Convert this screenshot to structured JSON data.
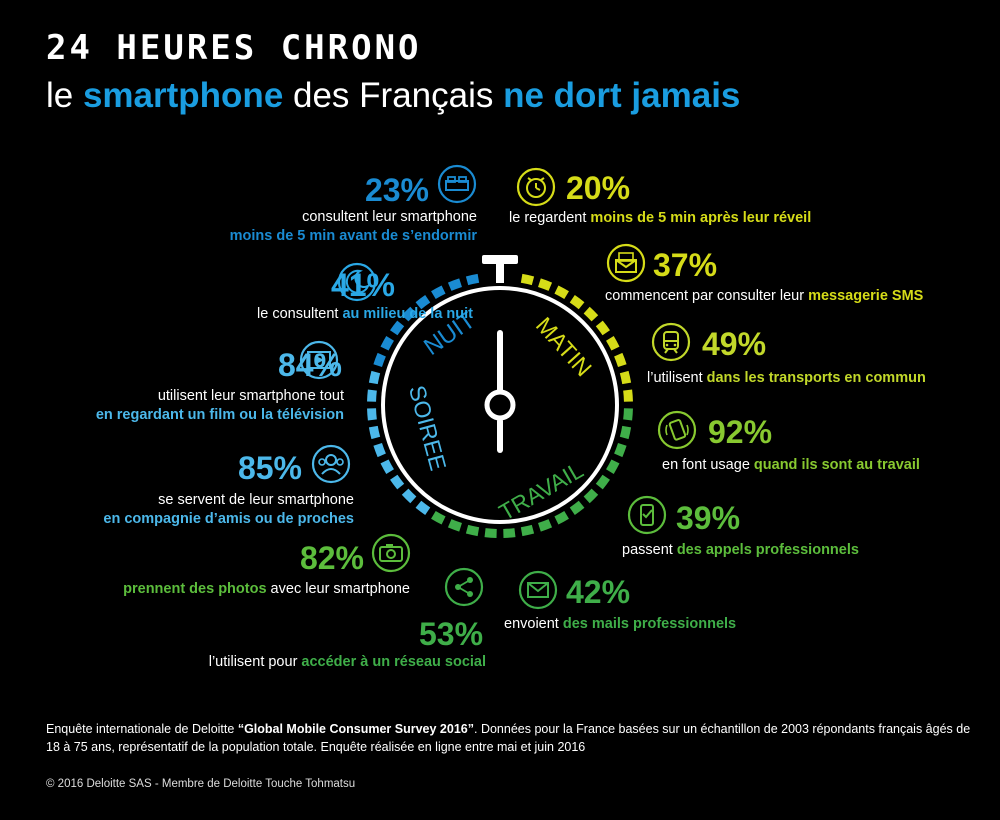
{
  "header": {
    "title": "24 HEURES CHRONO",
    "subtitle_pre": "le ",
    "subtitle_hl1": "smartphone",
    "subtitle_mid": " des Français ",
    "subtitle_hl2": "ne dort jamais"
  },
  "clock": {
    "labels": {
      "nuit": "NUIT",
      "matin": "MATIN",
      "travail": "TRAVAIL",
      "soiree": "SOIREE"
    },
    "colors": {
      "nuit": "#1a8bd2",
      "matin": "#d6dc18",
      "travail": "#3fae49",
      "soiree": "#4cb8ea"
    }
  },
  "stats": {
    "s23": {
      "pct": "23%",
      "l1": "consultent leur smartphone",
      "l2": "moins de 5 min avant de s’endormir",
      "icon": "bed-icon"
    },
    "s41": {
      "pct": "41%",
      "pre": "le consultent ",
      "hl": "au milieu de la nuit",
      "icon": "moon-icon"
    },
    "s84": {
      "pct": "84%",
      "l1": "utilisent leur smartphone tout",
      "l2": "en regardant un film ou la télévision",
      "icon": "film-icon"
    },
    "s85": {
      "pct": "85%",
      "l1": "se servent de leur smartphone",
      "l2": "en compagnie d’amis ou de proches",
      "icon": "friends-icon"
    },
    "s82": {
      "pct": "82%",
      "hl": "prennent des photos",
      "post": " avec leur smartphone",
      "icon": "camera-icon"
    },
    "s53": {
      "pct": "53%",
      "pre": "l’utilisent pour ",
      "hl": "accéder à un réseau social",
      "icon": "share-icon"
    },
    "s20": {
      "pct": "20%",
      "pre": "le regardent ",
      "hl": "moins de 5 min après leur réveil",
      "icon": "alarm-icon"
    },
    "s37": {
      "pct": "37%",
      "pre": "commencent par consulter leur ",
      "hl": "messagerie SMS",
      "icon": "message-icon"
    },
    "s49": {
      "pct": "49%",
      "pre": "l’utilisent ",
      "hl": "dans les transports en commun",
      "icon": "train-icon"
    },
    "s92": {
      "pct": "92%",
      "pre": "en font usage ",
      "hl": "quand ils sont au travail",
      "icon": "phone-vibrate-icon"
    },
    "s39": {
      "pct": "39%",
      "pre": "passent ",
      "hl": "des appels professionnels",
      "icon": "phone-call-icon"
    },
    "s42": {
      "pct": "42%",
      "pre": "envoient ",
      "hl": "des mails professionnels",
      "icon": "email-icon"
    }
  },
  "footer": {
    "pre": "Enquête internationale de Deloitte ",
    "survey": "“Global Mobile Consumer Survey 2016”",
    "post": ". Données pour la France basées sur un échantillon de 2003 répondants français âgés de 18 à 75 ans, représentatif de la population totale. Enquête réalisée en ligne entre mai et juin 2016",
    "copyright": "© 2016 Deloitte SAS - Membre de Deloitte Touche Tohmatsu"
  }
}
